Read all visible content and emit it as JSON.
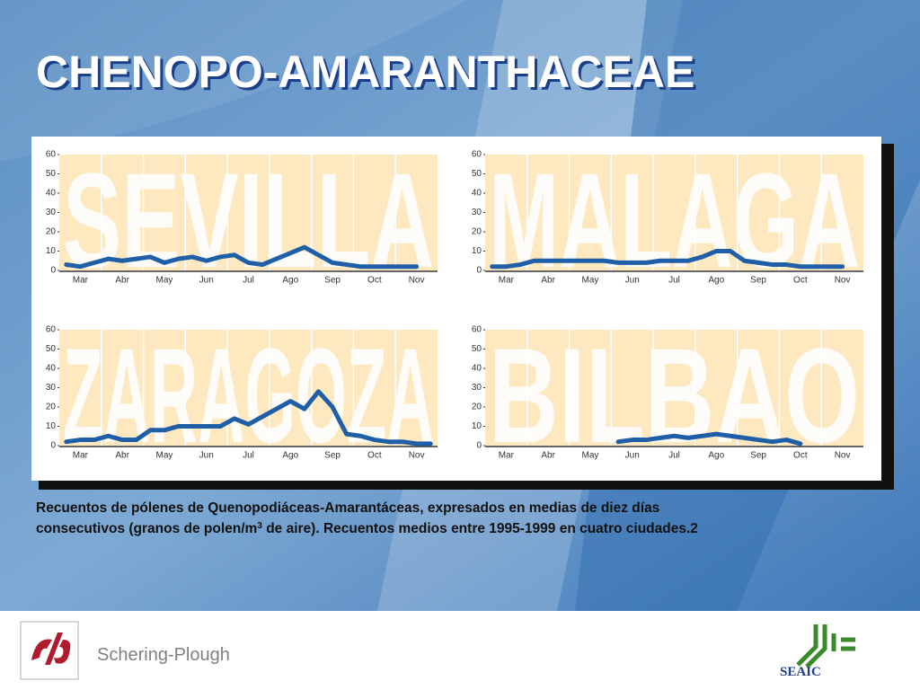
{
  "title": "CHENOPO-AMARANTHACEAE",
  "caption": [
    "Recuentos de pólenes de Quenopodiáceas-Amarantáceas, expresados en medias de diez días",
    "consecutivos (granos de polen/m",
    "3",
    " de aire). Recuentos medios entre 1995-1999 en cuatro ciudades.2"
  ],
  "company": "Schering-Plough",
  "society": "SEAIC",
  "chart_data": [
    {
      "type": "line",
      "title": "SEVILLA",
      "categories": [
        null,
        "Mar",
        null,
        null,
        "Abr",
        null,
        null,
        "May",
        null,
        null,
        "Jun",
        null,
        null,
        "Jul",
        null,
        null,
        "Ago",
        null,
        null,
        "Sep",
        null,
        null,
        "Oct",
        null,
        null,
        "Nov",
        null
      ],
      "values": [
        3,
        2,
        4,
        6,
        5,
        6,
        7,
        4,
        6,
        7,
        5,
        7,
        8,
        4,
        3,
        6,
        9,
        12,
        8,
        4,
        3,
        2,
        2,
        2,
        2,
        2,
        null
      ],
      "color": "#1f5fa8",
      "ylim": [
        0,
        60
      ],
      "yticks": [
        0,
        10,
        20,
        30,
        40,
        50,
        60
      ]
    },
    {
      "type": "line",
      "title": "MALAGA",
      "categories": [
        null,
        "Mar",
        null,
        null,
        "Abr",
        null,
        null,
        "May",
        null,
        null,
        "Jun",
        null,
        null,
        "Jul",
        null,
        null,
        "Ago",
        null,
        null,
        "Sep",
        null,
        null,
        "Oct",
        null,
        null,
        "Nov",
        null
      ],
      "values": [
        2,
        2,
        3,
        5,
        5,
        5,
        5,
        5,
        5,
        4,
        4,
        4,
        5,
        5,
        5,
        7,
        10,
        10,
        5,
        4,
        3,
        3,
        2,
        2,
        2,
        2,
        null
      ],
      "color": "#1f5fa8",
      "ylim": [
        0,
        60
      ],
      "yticks": [
        0,
        10,
        20,
        30,
        40,
        50,
        60
      ]
    },
    {
      "type": "line",
      "title": "ZARAGOZA",
      "categories": [
        null,
        "Mar",
        null,
        null,
        "Abr",
        null,
        null,
        "May",
        null,
        null,
        "Jun",
        null,
        null,
        "Jul",
        null,
        null,
        "Ago",
        null,
        null,
        "Sep",
        null,
        null,
        "Oct",
        null,
        null,
        "Nov",
        null
      ],
      "values": [
        2,
        3,
        3,
        5,
        3,
        3,
        8,
        8,
        10,
        10,
        10,
        10,
        14,
        11,
        15,
        19,
        23,
        19,
        28,
        20,
        6,
        5,
        3,
        2,
        2,
        1,
        1
      ],
      "color": "#1f5fa8",
      "ylim": [
        0,
        60
      ],
      "yticks": [
        0,
        10,
        20,
        30,
        40,
        50,
        60
      ]
    },
    {
      "type": "line",
      "title": "BILBAO",
      "categories": [
        null,
        "Mar",
        null,
        null,
        "Abr",
        null,
        null,
        "May",
        null,
        null,
        "Jun",
        null,
        null,
        "Jul",
        null,
        null,
        "Ago",
        null,
        null,
        "Sep",
        null,
        null,
        "Oct",
        null,
        null,
        "Nov",
        null
      ],
      "values": [
        null,
        null,
        null,
        null,
        null,
        null,
        null,
        null,
        null,
        2,
        3,
        3,
        4,
        5,
        4,
        5,
        6,
        5,
        4,
        3,
        2,
        3,
        1,
        null,
        null,
        null,
        null
      ],
      "color": "#1f5fa8",
      "ylim": [
        0,
        60
      ],
      "yticks": [
        0,
        10,
        20,
        30,
        40,
        50,
        60
      ]
    }
  ]
}
